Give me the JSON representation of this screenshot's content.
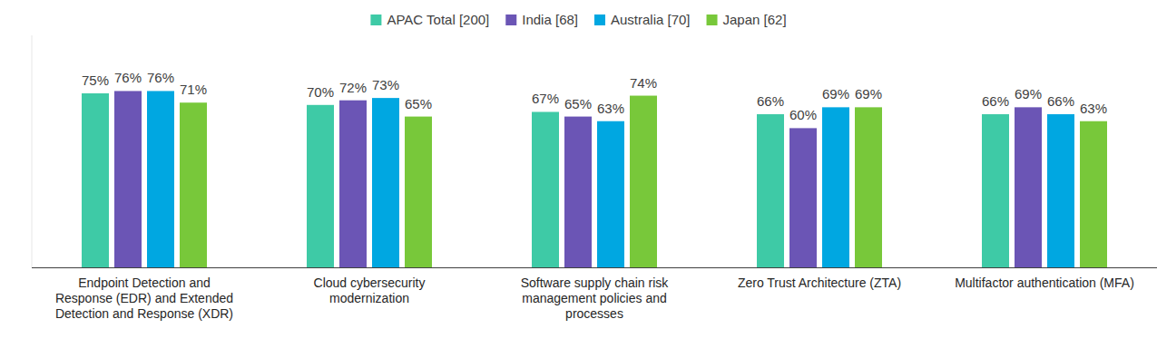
{
  "chart_data": {
    "type": "bar",
    "categories": [
      "Endpoint Detection and Response (EDR) and Extended Detection and Response (XDR)",
      "Cloud cybersecurity modernization",
      "Software supply chain risk management policies and processes",
      "Zero Trust Architecture (ZTA)",
      "Multifactor authentication (MFA)"
    ],
    "series": [
      {
        "name": "APAC Total [200]",
        "color": "#3ecaa6",
        "values": [
          75,
          70,
          67,
          66,
          66
        ],
        "value_labels": [
          "75%",
          "70%",
          "67%",
          "66%",
          "66%"
        ]
      },
      {
        "name": "India [68]",
        "color": "#6b55b5",
        "values": [
          76,
          72,
          65,
          60,
          69
        ],
        "value_labels": [
          "76%",
          "72%",
          "65%",
          "60%",
          "69%"
        ]
      },
      {
        "name": "Australia [70]",
        "color": "#00a7e1",
        "values": [
          76,
          73,
          63,
          69,
          66
        ],
        "value_labels": [
          "76%",
          "73%",
          "63%",
          "69%",
          "66%"
        ]
      },
      {
        "name": "Japan [62]",
        "color": "#78c83a",
        "values": [
          71,
          65,
          74,
          69,
          63
        ],
        "value_labels": [
          "71%",
          "65%",
          "74%",
          "69%",
          "63%"
        ]
      }
    ],
    "ylim": [
      0,
      100
    ],
    "grid": false,
    "legend": "top",
    "data_labels": true,
    "tick_labels": "x"
  }
}
